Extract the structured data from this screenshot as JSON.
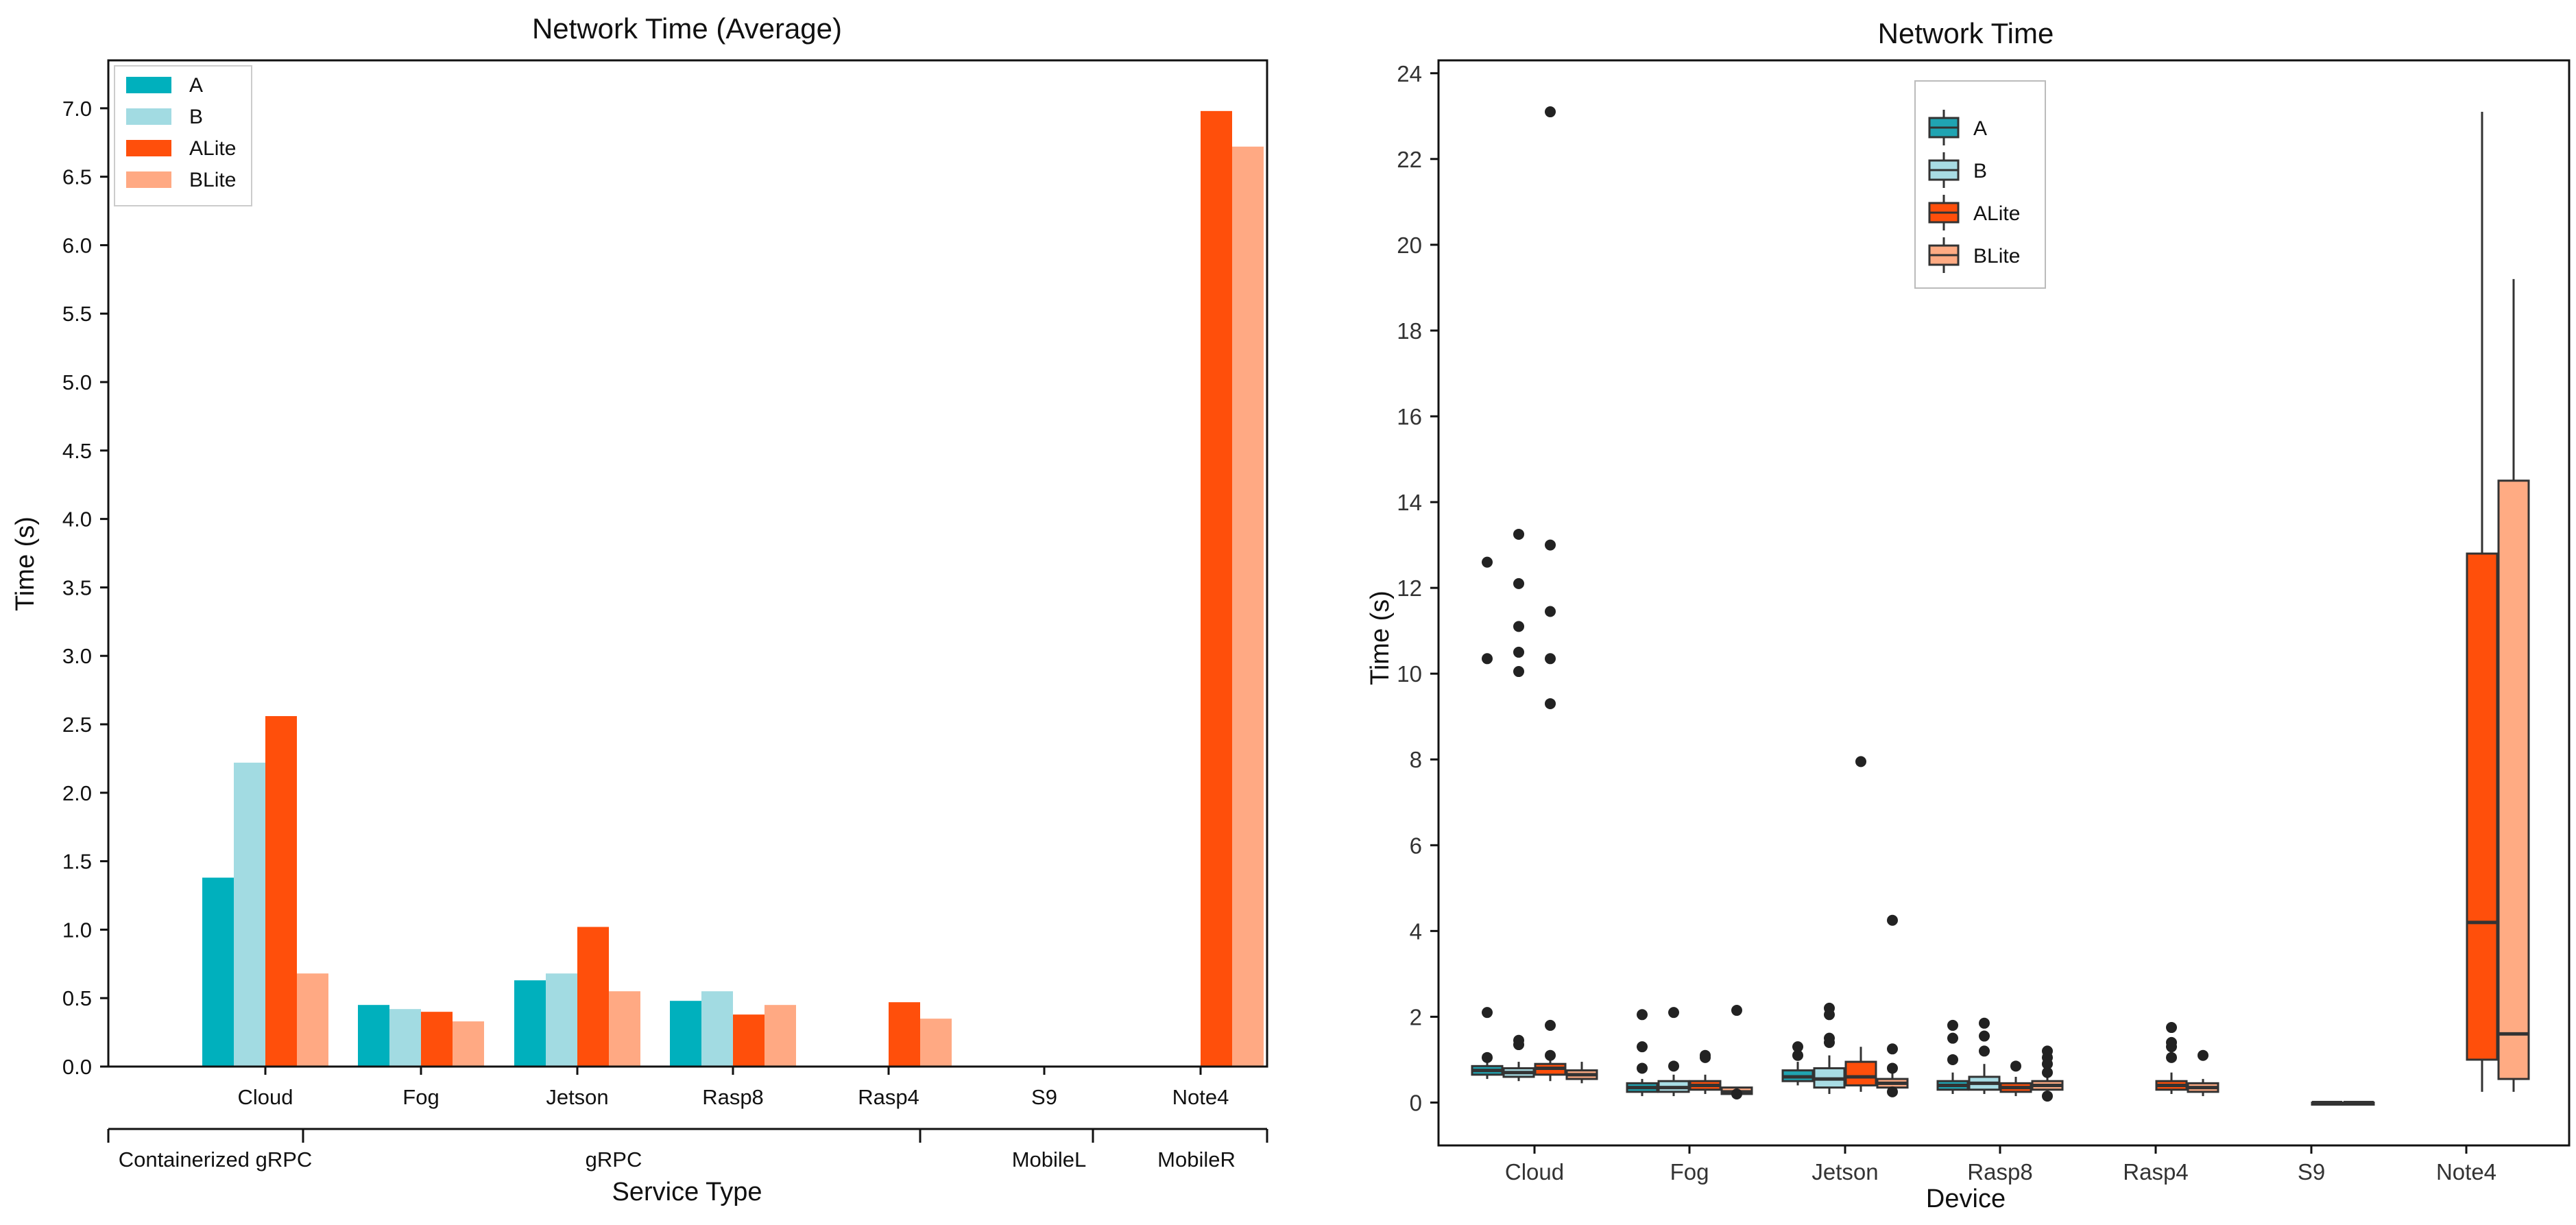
{
  "chart_data": [
    {
      "type": "bar",
      "title": "Network Time (Average)",
      "xlabel": "Service Type",
      "ylabel": "Time (s)",
      "ylim": [
        0,
        7.35
      ],
      "yticks": [
        "0.0",
        "0.5",
        "1.0",
        "1.5",
        "2.0",
        "2.5",
        "3.0",
        "3.5",
        "4.0",
        "4.5",
        "5.0",
        "5.5",
        "6.0",
        "6.5",
        "7.0"
      ],
      "categories": [
        "Cloud",
        "Fog",
        "Jetson",
        "Rasp8",
        "Rasp4",
        "S9",
        "Note4"
      ],
      "groups": [
        "Containerized gRPC",
        "gRPC",
        "MobileL",
        "MobileR"
      ],
      "legend_position": "top-left",
      "series": [
        {
          "name": "A",
          "color": "#00b0bd",
          "values": [
            1.38,
            0.45,
            0.63,
            0.48,
            null,
            null,
            null
          ]
        },
        {
          "name": "B",
          "color": "#a2dbe2",
          "values": [
            2.22,
            0.42,
            0.68,
            0.55,
            null,
            null,
            null
          ]
        },
        {
          "name": "ALite",
          "color": "#ff4f0b",
          "values": [
            2.56,
            0.4,
            1.02,
            0.38,
            0.47,
            null,
            6.98
          ]
        },
        {
          "name": "BLite",
          "color": "#ffa983",
          "values": [
            0.68,
            0.33,
            0.55,
            0.45,
            0.35,
            null,
            6.72
          ]
        }
      ]
    },
    {
      "type": "box",
      "title": "Network Time",
      "xlabel": "Device",
      "ylabel": "Time (s)",
      "ylim": [
        -1,
        24.3
      ],
      "yticks": [
        "0",
        "2",
        "4",
        "6",
        "8",
        "10",
        "12",
        "14",
        "16",
        "18",
        "20",
        "22",
        "24"
      ],
      "categories": [
        "Cloud",
        "Fog",
        "Jetson",
        "Rasp8",
        "Rasp4",
        "S9",
        "Note4"
      ],
      "legend_position": "top-center",
      "series": [
        {
          "name": "A",
          "color": "#20a4b2",
          "boxes": [
            {
              "category": "Cloud",
              "q1": 0.65,
              "median": 0.75,
              "q3": 0.85,
              "whislo": 0.55,
              "whishi": 0.95,
              "fliers": [
                2.1,
                1.05,
                10.35,
                12.6
              ]
            },
            {
              "category": "Fog",
              "q1": 0.25,
              "median": 0.35,
              "q3": 0.45,
              "whislo": 0.15,
              "whishi": 0.55,
              "fliers": [
                2.05,
                1.3,
                0.8
              ]
            },
            {
              "category": "Jetson",
              "q1": 0.5,
              "median": 0.6,
              "q3": 0.75,
              "whislo": 0.4,
              "whishi": 0.95,
              "fliers": [
                1.3,
                1.1
              ]
            },
            {
              "category": "Rasp8",
              "q1": 0.3,
              "median": 0.4,
              "q3": 0.5,
              "whislo": 0.2,
              "whishi": 0.7,
              "fliers": [
                1.8,
                1.5,
                1.0
              ]
            }
          ]
        },
        {
          "name": "B",
          "color": "#a8dce4",
          "boxes": [
            {
              "category": "Cloud",
              "q1": 0.6,
              "median": 0.7,
              "q3": 0.8,
              "whislo": 0.5,
              "whishi": 0.95,
              "fliers": [
                10.05,
                10.5,
                11.1,
                12.1,
                13.25,
                1.45,
                1.35
              ]
            },
            {
              "category": "Fog",
              "q1": 0.25,
              "median": 0.35,
              "q3": 0.5,
              "whislo": 0.15,
              "whishi": 0.65,
              "fliers": [
                2.1,
                0.85
              ]
            },
            {
              "category": "Jetson",
              "q1": 0.35,
              "median": 0.55,
              "q3": 0.8,
              "whislo": 0.2,
              "whishi": 1.1,
              "fliers": [
                2.2,
                2.05,
                1.5,
                1.4
              ]
            },
            {
              "category": "Rasp8",
              "q1": 0.3,
              "median": 0.45,
              "q3": 0.6,
              "whislo": 0.2,
              "whishi": 0.9,
              "fliers": [
                1.85,
                1.55,
                1.2
              ]
            }
          ]
        },
        {
          "name": "ALite",
          "color": "#ff4f0b",
          "boxes": [
            {
              "category": "Cloud",
              "q1": 0.65,
              "median": 0.8,
              "q3": 0.9,
              "whislo": 0.5,
              "whishi": 1.0,
              "fliers": [
                23.1,
                13.0,
                11.45,
                10.35,
                9.3,
                1.8,
                1.1
              ]
            },
            {
              "category": "Fog",
              "q1": 0.3,
              "median": 0.4,
              "q3": 0.5,
              "whislo": 0.2,
              "whishi": 0.65,
              "fliers": [
                1.1,
                1.05
              ]
            },
            {
              "category": "Jetson",
              "q1": 0.4,
              "median": 0.6,
              "q3": 0.95,
              "whislo": 0.25,
              "whishi": 1.3,
              "fliers": [
                7.95
              ]
            },
            {
              "category": "Rasp8",
              "q1": 0.25,
              "median": 0.35,
              "q3": 0.45,
              "whislo": 0.15,
              "whishi": 0.6,
              "fliers": [
                0.85
              ]
            },
            {
              "category": "Rasp4",
              "q1": 0.3,
              "median": 0.4,
              "q3": 0.5,
              "whislo": 0.2,
              "whishi": 0.7,
              "fliers": [
                1.75,
                1.4,
                1.3,
                1.05
              ]
            },
            {
              "category": "S9",
              "q1": 0.0,
              "median": 0.0,
              "q3": 0.0,
              "whislo": 0.0,
              "whishi": 0.0,
              "fliers": []
            },
            {
              "category": "Note4",
              "q1": 1.0,
              "median": 4.2,
              "q3": 12.8,
              "whislo": 0.25,
              "whishi": 23.1,
              "fliers": []
            }
          ]
        },
        {
          "name": "BLite",
          "color": "#ffab83",
          "boxes": [
            {
              "category": "Cloud",
              "q1": 0.55,
              "median": 0.65,
              "q3": 0.75,
              "whislo": 0.45,
              "whishi": 0.95,
              "fliers": []
            },
            {
              "category": "Fog",
              "q1": 0.2,
              "median": 0.25,
              "q3": 0.35,
              "whislo": 0.1,
              "whishi": 0.35,
              "fliers": [
                2.15,
                0.2
              ]
            },
            {
              "category": "Jetson",
              "q1": 0.35,
              "median": 0.45,
              "q3": 0.55,
              "whislo": 0.25,
              "whishi": 0.7,
              "fliers": [
                4.25,
                1.25,
                0.8,
                0.25
              ]
            },
            {
              "category": "Rasp8",
              "q1": 0.3,
              "median": 0.4,
              "q3": 0.5,
              "whislo": 0.2,
              "whishi": 0.65,
              "fliers": [
                1.2,
                1.05,
                0.9,
                0.7,
                0.15
              ]
            },
            {
              "category": "Rasp4",
              "q1": 0.25,
              "median": 0.35,
              "q3": 0.45,
              "whislo": 0.15,
              "whishi": 0.55,
              "fliers": [
                1.1
              ]
            },
            {
              "category": "S9",
              "q1": 0.0,
              "median": 0.0,
              "q3": 0.0,
              "whislo": 0.0,
              "whishi": 0.0,
              "fliers": []
            },
            {
              "category": "Note4",
              "q1": 0.55,
              "median": 1.6,
              "q3": 14.5,
              "whislo": 0.25,
              "whishi": 19.2,
              "fliers": []
            }
          ]
        }
      ]
    }
  ]
}
